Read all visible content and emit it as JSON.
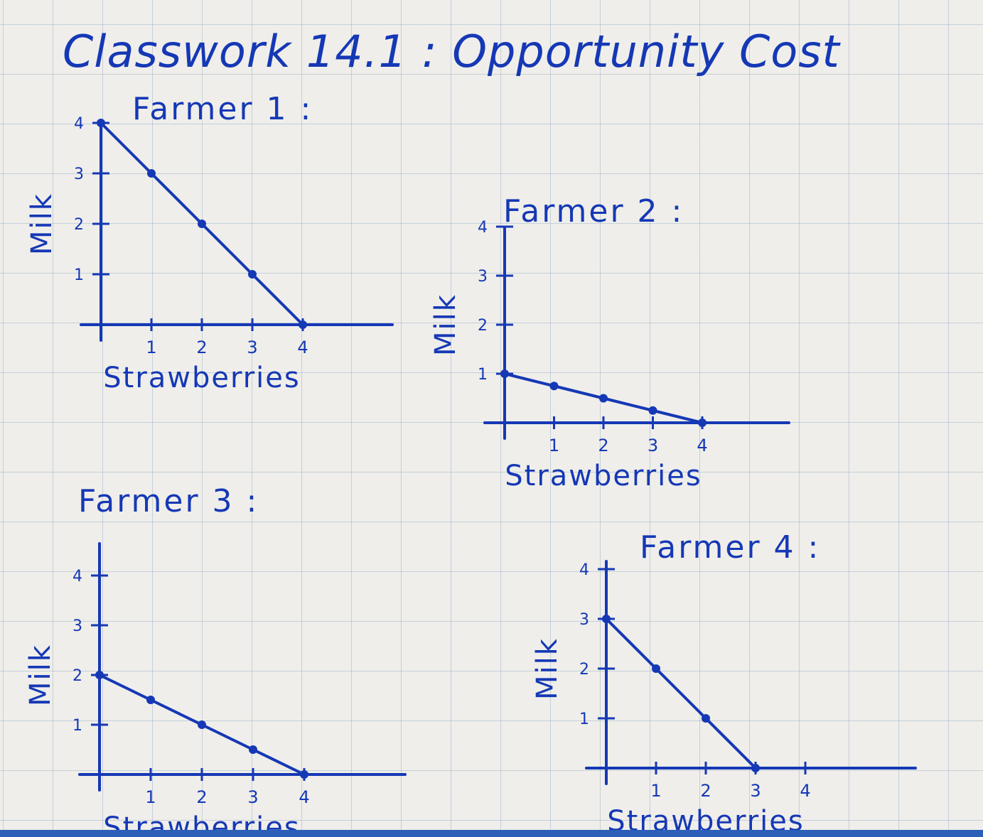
{
  "page_title": "Classwork 14.1 : Opportunity Cost",
  "ink_color": "#1538b5",
  "grid_color": "#8fa6c8",
  "paper_color": "#efeeea",
  "chart_data": [
    {
      "type": "line",
      "title": "Farmer 1 :",
      "xlabel": "Strawberries",
      "ylabel": "Milk",
      "xlim": [
        0,
        4
      ],
      "ylim": [
        0,
        4
      ],
      "x_ticks": [
        "1",
        "2",
        "3",
        "4"
      ],
      "y_ticks": [
        "1",
        "2",
        "3",
        "4"
      ],
      "x": [
        0,
        1,
        2,
        3,
        4
      ],
      "y": [
        4,
        3,
        2,
        1,
        0
      ]
    },
    {
      "type": "line",
      "title": "Farmer 2 :",
      "xlabel": "Strawberries",
      "ylabel": "Milk",
      "xlim": [
        0,
        4
      ],
      "ylim": [
        0,
        4
      ],
      "x_ticks": [
        "1",
        "2",
        "3",
        "4"
      ],
      "y_ticks": [
        "1",
        "2",
        "3",
        "4"
      ],
      "x": [
        0,
        1,
        2,
        3,
        4
      ],
      "y": [
        1,
        0.75,
        0.5,
        0.25,
        0
      ]
    },
    {
      "type": "line",
      "title": "Farmer 3 :",
      "xlabel": "Strawberries",
      "ylabel": "Milk",
      "xlim": [
        0,
        4
      ],
      "ylim": [
        0,
        4
      ],
      "x_ticks": [
        "1",
        "2",
        "3",
        "4"
      ],
      "y_ticks": [
        "1",
        "2",
        "3",
        "4"
      ],
      "x": [
        0,
        1,
        2,
        3,
        4
      ],
      "y": [
        2,
        1.5,
        1,
        0.5,
        0
      ]
    },
    {
      "type": "line",
      "title": "Farmer 4 :",
      "xlabel": "Strawberries",
      "ylabel": "Milk",
      "xlim": [
        0,
        4
      ],
      "ylim": [
        0,
        4
      ],
      "x_ticks": [
        "1",
        "2",
        "3",
        "4"
      ],
      "y_ticks": [
        "1",
        "2",
        "3",
        "4"
      ],
      "x": [
        0,
        1,
        2,
        3
      ],
      "y": [
        3,
        2,
        1,
        0
      ]
    }
  ]
}
